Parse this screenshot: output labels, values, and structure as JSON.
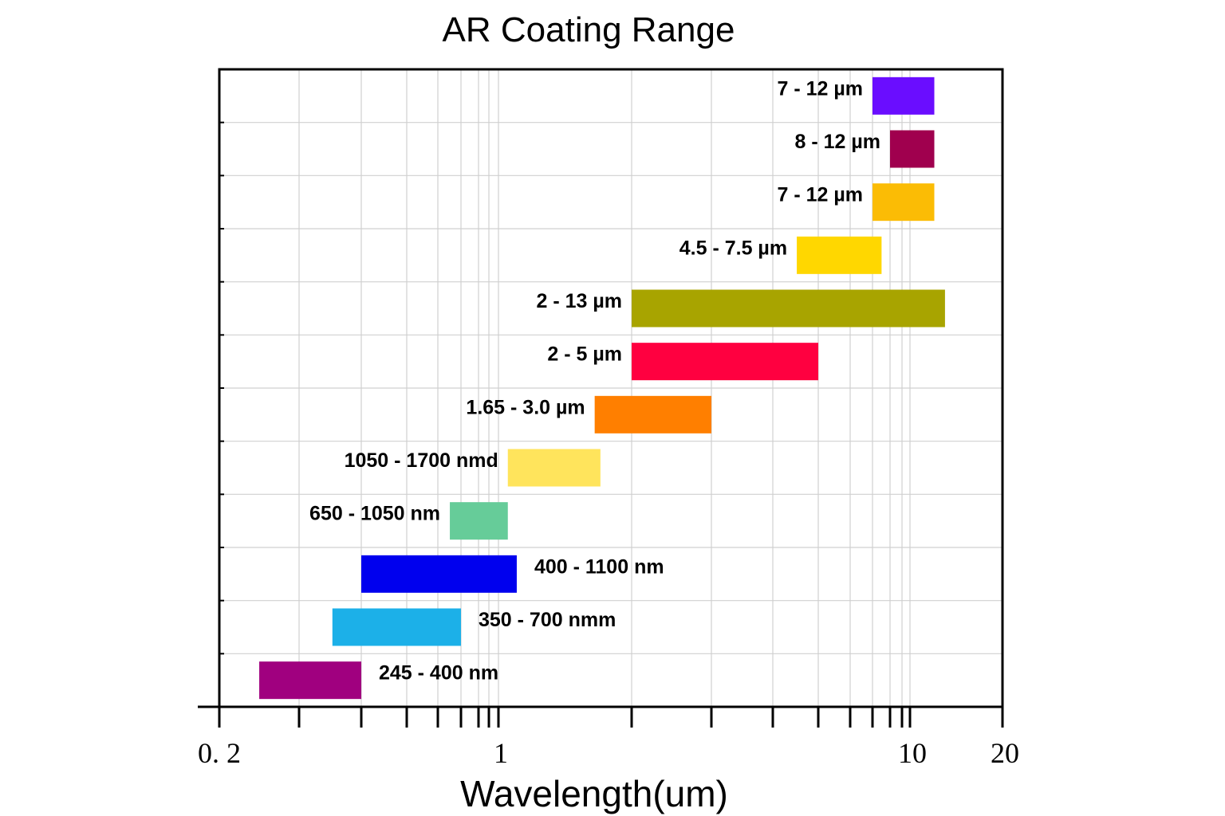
{
  "chart_data": {
    "type": "bar",
    "orientation": "horizontal-range",
    "title": "AR Coating Range",
    "xlabel": "Wavelength(um)",
    "ylabel": "",
    "x_scale": "log",
    "xlim": [
      0.2,
      20
    ],
    "x_ticks": [
      0.2,
      0.3,
      0.4,
      0.5,
      0.6,
      0.7,
      0.8,
      0.9,
      1,
      2,
      3,
      4,
      5,
      6,
      7,
      8,
      9,
      10,
      20
    ],
    "x_tick_labels": [
      {
        "value": 0.2,
        "label": "0. 2"
      },
      {
        "value": 1,
        "label": "1"
      },
      {
        "value": 10,
        "label": "10"
      },
      {
        "value": 20,
        "label": "20"
      }
    ],
    "grid": true,
    "bars": [
      {
        "label": "7 - 12 µm",
        "start": 7,
        "end": 12,
        "color": "#6a0dff"
      },
      {
        "label": "8 - 12 µm",
        "start": 8,
        "end": 12,
        "color": "#a0004e"
      },
      {
        "label": "7 - 12 µm",
        "start": 7,
        "end": 12,
        "color": "#fbbc05"
      },
      {
        "label": "4.5 - 7.5 µm",
        "start": 4.5,
        "end": 7.5,
        "color": "#ffd700"
      },
      {
        "label": "2 - 13 µm",
        "start": 2,
        "end": 13,
        "color": "#a8a400"
      },
      {
        "label": "2 - 5 µm",
        "start": 2,
        "end": 5,
        "color": "#ff0040"
      },
      {
        "label": "1.65 - 3.0 µm",
        "start": 1.65,
        "end": 3.0,
        "color": "#ff7f00"
      },
      {
        "label": "1050 - 1700 nmd",
        "start": 1.05,
        "end": 1.7,
        "color": "#ffe45c"
      },
      {
        "label": "650 - 1050 nm",
        "start": 0.65,
        "end": 1.05,
        "color": "#66cc99"
      },
      {
        "label": "400 - 1100 nm",
        "start": 0.4,
        "end": 1.1,
        "color": "#0000ee"
      },
      {
        "label": "350 - 700 nmm",
        "start": 0.35,
        "end": 0.7,
        "color": "#1cb0e8"
      },
      {
        "label": "245 - 400 nm",
        "start": 0.245,
        "end": 0.4,
        "color": "#a0007f"
      }
    ]
  }
}
